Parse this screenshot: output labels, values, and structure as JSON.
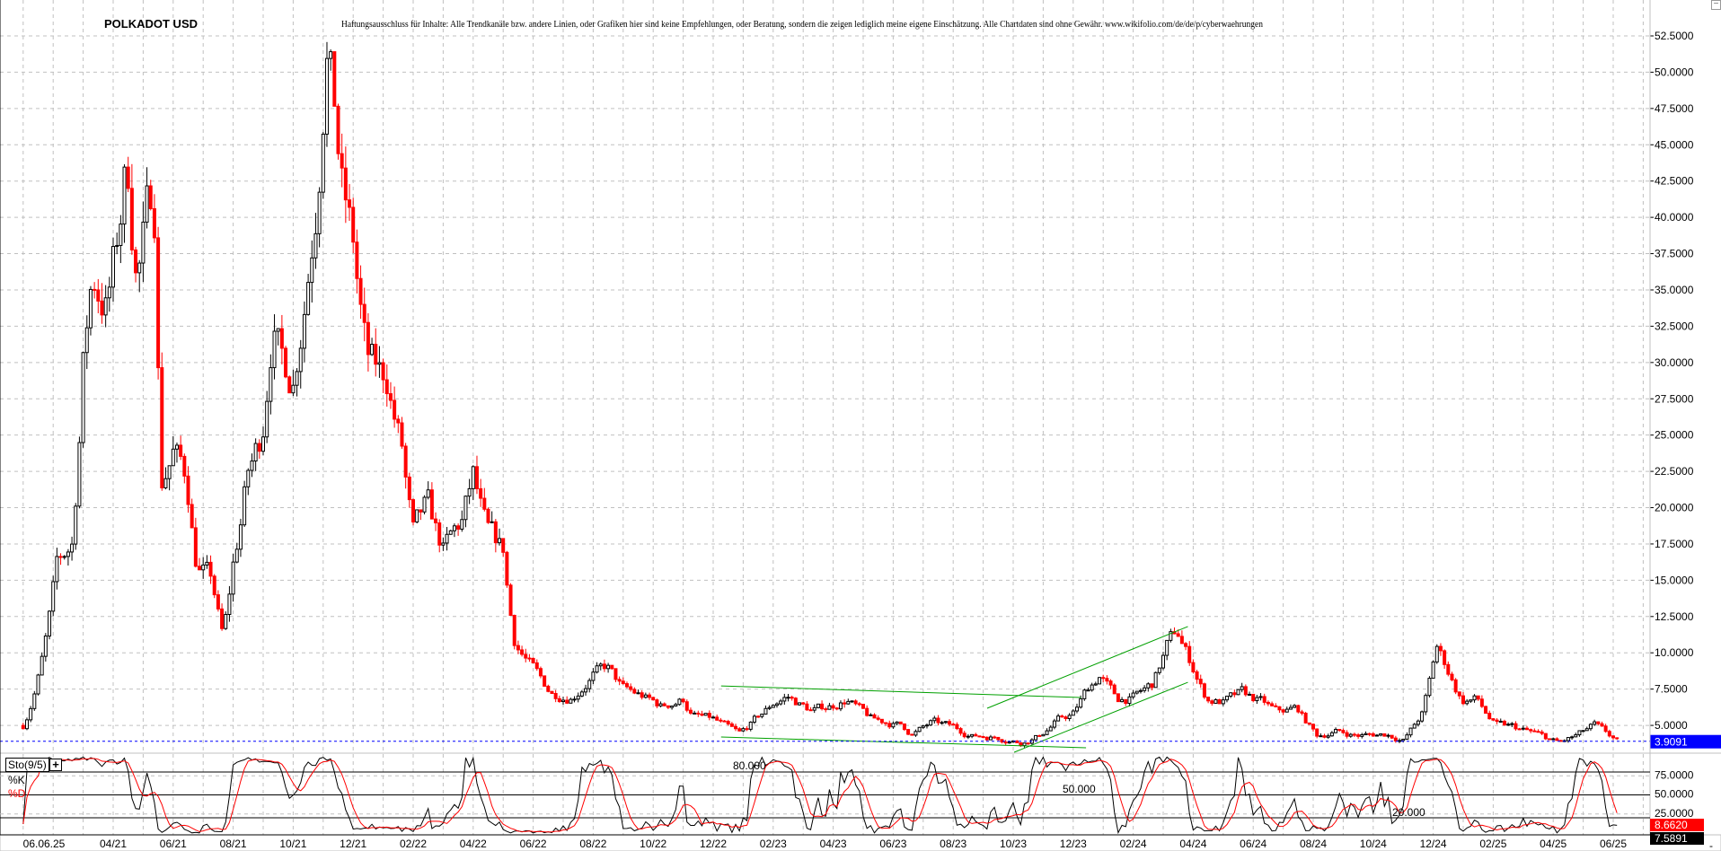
{
  "header": {
    "title": "POLKADOT USD",
    "disclaimer": "Haftungsausschluss für Inhalte: Alle Trendkanäle bzw. andere Linien, oder Grafiken hier sind keine Empfehlungen, oder Beratung, sondern die zeigen lediglich meine eigene Einschätzung. Alle Chartdaten sind ohne Gewähr.  www.wikifolio.com/de/de/p/cyberwaehrungen"
  },
  "colors": {
    "up": "#000000",
    "down": "#ff0000",
    "trendline": "#00a000",
    "last_price": "#0000ff",
    "grid": "#c0c0c0",
    "stoch_k": "#000000",
    "stoch_d": "#ff0000"
  },
  "chart_data": [
    {
      "type": "candlestick",
      "title": "POLKADOT USD",
      "y_axis": {
        "position": "right",
        "min": 3,
        "max": 55,
        "ticks": [
          "5.0000",
          "7.5000",
          "10.0000",
          "12.5000",
          "15.0000",
          "17.5000",
          "20.0000",
          "22.5000",
          "25.0000",
          "27.5000",
          "30.0000",
          "32.5000",
          "35.0000",
          "37.5000",
          "40.0000",
          "42.5000",
          "45.0000",
          "47.5000",
          "50.0000",
          "52.5000"
        ]
      },
      "x_axis": {
        "labels": [
          "06.06.25",
          "04/21",
          "06/21",
          "08/21",
          "10/21",
          "12/21",
          "02/22",
          "04/22",
          "06/22",
          "08/22",
          "10/22",
          "12/22",
          "02/23",
          "04/23",
          "06/23",
          "08/23",
          "10/23",
          "12/23",
          "02/24",
          "04/24",
          "06/24",
          "08/24",
          "10/24",
          "12/24",
          "02/25",
          "04/25",
          "06/25"
        ]
      },
      "grid": true,
      "last_price": "3.9091",
      "approx_closes": [
        [
          "2021-01-01",
          5.0
        ],
        [
          "2021-01-20",
          9.5
        ],
        [
          "2021-02-05",
          16
        ],
        [
          "2021-02-20",
          17.5
        ],
        [
          "2021-03-01",
          30
        ],
        [
          "2021-03-10",
          36
        ],
        [
          "2021-03-25",
          34
        ],
        [
          "2021-04-05",
          38
        ],
        [
          "2021-04-15",
          44
        ],
        [
          "2021-04-25",
          36
        ],
        [
          "2021-05-05",
          40
        ],
        [
          "2021-05-12",
          42
        ],
        [
          "2021-05-20",
          22
        ],
        [
          "2021-06-01",
          24
        ],
        [
          "2021-06-15",
          22
        ],
        [
          "2021-06-25",
          16
        ],
        [
          "2021-07-10",
          15
        ],
        [
          "2021-07-21",
          11
        ],
        [
          "2021-08-01",
          16
        ],
        [
          "2021-08-15",
          22
        ],
        [
          "2021-08-30",
          25
        ],
        [
          "2021-09-10",
          33
        ],
        [
          "2021-09-20",
          30
        ],
        [
          "2021-10-01",
          29
        ],
        [
          "2021-10-15",
          36
        ],
        [
          "2021-10-25",
          42
        ],
        [
          "2021-11-04",
          53
        ],
        [
          "2021-11-12",
          48
        ],
        [
          "2021-11-20",
          42
        ],
        [
          "2021-12-01",
          38
        ],
        [
          "2021-12-15",
          30
        ],
        [
          "2021-12-28",
          29
        ],
        [
          "2022-01-05",
          29
        ],
        [
          "2022-01-20",
          24
        ],
        [
          "2022-02-01",
          18
        ],
        [
          "2022-02-15",
          20
        ],
        [
          "2022-03-01",
          17
        ],
        [
          "2022-03-20",
          19
        ],
        [
          "2022-04-01",
          22
        ],
        [
          "2022-04-15",
          18
        ],
        [
          "2022-05-01",
          17
        ],
        [
          "2022-05-12",
          11
        ],
        [
          "2022-05-25",
          9.5
        ],
        [
          "2022-06-10",
          8
        ],
        [
          "2022-06-20",
          7.2
        ],
        [
          "2022-07-10",
          7.0
        ],
        [
          "2022-08-01",
          8.5
        ],
        [
          "2022-08-15",
          9.0
        ],
        [
          "2022-09-01",
          7.5
        ],
        [
          "2022-09-20",
          7.0
        ],
        [
          "2022-10-10",
          6.3
        ],
        [
          "2022-11-01",
          6.8
        ],
        [
          "2022-11-10",
          5.7
        ],
        [
          "2022-12-01",
          5.4
        ],
        [
          "2022-12-28",
          4.4
        ],
        [
          "2023-01-15",
          5.5
        ],
        [
          "2023-02-01",
          6.5
        ],
        [
          "2023-02-15",
          7.0
        ],
        [
          "2023-03-10",
          6.0
        ],
        [
          "2023-04-01",
          6.4
        ],
        [
          "2023-04-15",
          6.8
        ],
        [
          "2023-05-10",
          5.4
        ],
        [
          "2023-06-10",
          5.0
        ],
        [
          "2023-06-20",
          4.4
        ],
        [
          "2023-07-10",
          5.2
        ],
        [
          "2023-08-01",
          4.9
        ],
        [
          "2023-08-20",
          4.3
        ],
        [
          "2023-09-15",
          4.2
        ],
        [
          "2023-10-10",
          3.8
        ],
        [
          "2023-10-25",
          4.2
        ],
        [
          "2023-11-15",
          5.3
        ],
        [
          "2023-12-01",
          5.8
        ],
        [
          "2023-12-15",
          7.5
        ],
        [
          "2023-12-28",
          8.5
        ],
        [
          "2024-01-15",
          6.8
        ],
        [
          "2024-02-01",
          6.9
        ],
        [
          "2024-02-20",
          7.8
        ],
        [
          "2024-03-05",
          10.5
        ],
        [
          "2024-03-15",
          11.5
        ],
        [
          "2024-04-01",
          9.0
        ],
        [
          "2024-04-15",
          6.8
        ],
        [
          "2024-05-01",
          6.6
        ],
        [
          "2024-05-20",
          7.2
        ],
        [
          "2024-06-10",
          6.6
        ],
        [
          "2024-06-25",
          5.9
        ],
        [
          "2024-07-15",
          6.2
        ],
        [
          "2024-08-05",
          4.3
        ],
        [
          "2024-08-25",
          4.6
        ],
        [
          "2024-09-15",
          4.3
        ],
        [
          "2024-10-15",
          4.4
        ],
        [
          "2024-11-01",
          4.0
        ],
        [
          "2024-11-20",
          5.8
        ],
        [
          "2024-12-04",
          10.5
        ],
        [
          "2024-12-15",
          9.0
        ],
        [
          "2024-12-30",
          6.7
        ],
        [
          "2025-01-15",
          6.8
        ],
        [
          "2025-02-03",
          5.0
        ],
        [
          "2025-02-20",
          4.9
        ],
        [
          "2025-03-15",
          4.4
        ],
        [
          "2025-04-07",
          3.8
        ],
        [
          "2025-04-25",
          4.3
        ],
        [
          "2025-05-12",
          5.0
        ],
        [
          "2025-05-25",
          4.4
        ],
        [
          "2025-06-06",
          3.9091
        ]
      ],
      "trendlines": [
        {
          "from": [
            "2022-12-09",
            7.72
          ],
          "to": [
            "2023-12-09",
            6.92
          ]
        },
        {
          "from": [
            "2022-12-09",
            4.2
          ],
          "to": [
            "2023-12-14",
            3.46
          ]
        },
        {
          "from": [
            "2023-09-05",
            6.18
          ],
          "to": [
            "2024-03-26",
            11.81
          ]
        },
        {
          "from": [
            "2023-10-02",
            3.15
          ],
          "to": [
            "2024-03-26",
            7.97
          ]
        }
      ]
    },
    {
      "type": "line",
      "indicator": "Sto(9/5)",
      "series": [
        {
          "name": "%K"
        },
        {
          "name": "%D"
        }
      ],
      "levels": [
        "80.000",
        "50.000",
        "20.000"
      ],
      "y_axis": {
        "min": 0,
        "max": 100,
        "ticks": [
          "75.0000",
          "50.0000",
          "25.0000"
        ]
      },
      "last_values": {
        "k": "7.5891",
        "d": "8.6620"
      }
    }
  ]
}
